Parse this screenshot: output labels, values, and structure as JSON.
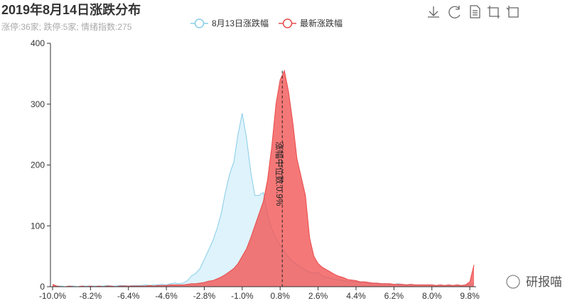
{
  "chart_data": {
    "type": "area",
    "title": "2019年8月14日涨跌分布",
    "subtitle": "涨停:36家; 跌停:5家; 情绪指数:275",
    "watermark": "研报喵",
    "x": [
      -10,
      -9.8,
      -9.6,
      -9.4,
      -9.2,
      -9,
      -8.8,
      -8.6,
      -8.4,
      -8.2,
      -8,
      -7.8,
      -7.6,
      -7.4,
      -7.2,
      -7,
      -6.8,
      -6.6,
      -6.4,
      -6.2,
      -6,
      -5.8,
      -5.6,
      -5.4,
      -5.2,
      -5,
      -4.8,
      -4.6,
      -4.4,
      -4.2,
      -4,
      -3.8,
      -3.6,
      -3.4,
      -3.2,
      -3,
      -2.8,
      -2.6,
      -2.4,
      -2.2,
      -2,
      -1.8,
      -1.6,
      -1.4,
      -1.2,
      -1,
      -0.8,
      -0.6,
      -0.4,
      -0.2,
      0,
      0.2,
      0.4,
      0.6,
      0.8,
      1,
      1.2,
      1.4,
      1.6,
      1.8,
      2,
      2.2,
      2.4,
      2.6,
      2.8,
      3,
      3.2,
      3.4,
      3.6,
      3.8,
      4,
      4.2,
      4.4,
      4.6,
      4.8,
      5,
      5.2,
      5.4,
      5.6,
      5.8,
      6,
      6.2,
      6.4,
      6.6,
      6.8,
      7,
      7.2,
      7.4,
      7.6,
      7.8,
      8,
      8.2,
      8.4,
      8.6,
      8.8,
      9,
      9.2,
      9.4,
      9.6,
      9.8,
      10
    ],
    "series": [
      {
        "name": "8月13日涨跌幅",
        "color": "#87cde8",
        "fill": "#def3fb",
        "values": [
          3,
          1,
          1,
          0,
          1,
          1,
          0,
          1,
          1,
          1,
          1,
          1,
          1,
          2,
          1,
          1,
          2,
          2,
          1,
          2,
          2,
          2,
          3,
          2,
          3,
          3,
          4,
          3,
          5,
          6,
          5,
          6,
          10,
          18,
          22,
          30,
          45,
          60,
          75,
          95,
          120,
          155,
          185,
          205,
          250,
          285,
          245,
          190,
          150,
          150,
          155,
          120,
          95,
          80,
          68,
          58,
          48,
          42,
          36,
          32,
          27,
          24,
          22,
          24,
          18,
          15,
          14,
          12,
          11,
          10,
          9,
          8,
          8,
          7,
          8,
          6,
          6,
          5,
          5,
          5,
          4,
          4,
          5,
          4,
          3,
          4,
          3,
          3,
          3,
          3,
          3,
          2,
          3,
          2,
          3,
          2,
          3,
          2,
          3,
          4,
          5
        ]
      },
      {
        "name": "最新涨跌幅",
        "color": "#e84a4a",
        "fill": "rgba(242,82,82,0.78)",
        "values": [
          4,
          1,
          0,
          0,
          1,
          0,
          0,
          1,
          0,
          1,
          0,
          1,
          0,
          1,
          1,
          0,
          1,
          1,
          1,
          1,
          1,
          1,
          1,
          2,
          1,
          2,
          2,
          2,
          3,
          3,
          3,
          3,
          4,
          5,
          5,
          6,
          7,
          9,
          10,
          13,
          16,
          20,
          25,
          30,
          38,
          50,
          62,
          80,
          100,
          120,
          140,
          175,
          230,
          300,
          340,
          355,
          320,
          270,
          210,
          180,
          150,
          80,
          50,
          38,
          32,
          28,
          24,
          20,
          17,
          15,
          12,
          11,
          10,
          8,
          8,
          7,
          6,
          6,
          5,
          5,
          5,
          4,
          4,
          4,
          3,
          4,
          3,
          3,
          3,
          3,
          3,
          2,
          3,
          2,
          3,
          2,
          3,
          2,
          3,
          8,
          36
        ]
      }
    ],
    "median": {
      "value": 0.9,
      "label": "涨幅中位数:0.9%"
    },
    "xlim": [
      -10.1,
      10.1
    ],
    "xticks": [
      {
        "value": -10,
        "label": "-10.0%"
      },
      {
        "value": -8.2,
        "label": "-8.2%"
      },
      {
        "value": -6.4,
        "label": "-6.4%"
      },
      {
        "value": -4.6,
        "label": "-4.6%"
      },
      {
        "value": -2.8,
        "label": "-2.8%"
      },
      {
        "value": -1,
        "label": "-1.0%"
      },
      {
        "value": 0.8,
        "label": "0.8%"
      },
      {
        "value": 2.6,
        "label": "2.6%"
      },
      {
        "value": 4.4,
        "label": "4.4%"
      },
      {
        "value": 6.2,
        "label": "6.2%"
      },
      {
        "value": 8,
        "label": "8.0%"
      },
      {
        "value": 9.8,
        "label": "9.8%"
      }
    ],
    "ylim": [
      0,
      400
    ],
    "yticks": [
      0,
      100,
      200,
      300,
      400
    ],
    "legend": "top"
  }
}
